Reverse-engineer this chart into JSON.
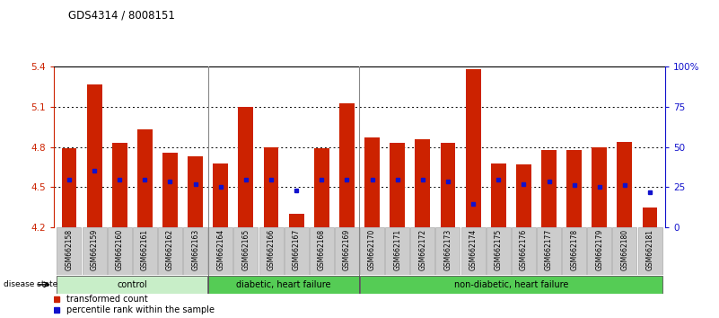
{
  "title": "GDS4314 / 8008151",
  "samples": [
    "GSM662158",
    "GSM662159",
    "GSM662160",
    "GSM662161",
    "GSM662162",
    "GSM662163",
    "GSM662164",
    "GSM662165",
    "GSM662166",
    "GSM662167",
    "GSM662168",
    "GSM662169",
    "GSM662170",
    "GSM662171",
    "GSM662172",
    "GSM662173",
    "GSM662174",
    "GSM662175",
    "GSM662176",
    "GSM662177",
    "GSM662178",
    "GSM662179",
    "GSM662180",
    "GSM662181"
  ],
  "bar_values": [
    4.79,
    5.27,
    4.83,
    4.93,
    4.76,
    4.73,
    4.68,
    5.1,
    4.8,
    4.3,
    4.79,
    5.13,
    4.87,
    4.83,
    4.86,
    4.83,
    5.38,
    4.68,
    4.67,
    4.78,
    4.78,
    4.8,
    4.84,
    4.35
  ],
  "percentile_values": [
    4.555,
    4.625,
    4.555,
    4.555,
    4.545,
    4.52,
    4.5,
    4.555,
    4.555,
    4.475,
    4.555,
    4.555,
    4.555,
    4.555,
    4.555,
    4.545,
    4.375,
    4.555,
    4.525,
    4.545,
    4.515,
    4.5,
    4.515,
    4.465
  ],
  "ymin": 4.2,
  "ymax": 5.4,
  "yticks": [
    4.2,
    4.5,
    4.8,
    5.1,
    5.4
  ],
  "ytick_labels": [
    "4.2",
    "4.5",
    "4.8",
    "5.1",
    "5.4"
  ],
  "grid_lines": [
    4.5,
    4.8,
    5.1
  ],
  "right_yticks": [
    0,
    25,
    50,
    75,
    100
  ],
  "right_ytick_labels": [
    "0",
    "25",
    "50",
    "75",
    "100%"
  ],
  "bar_color": "#cc2200",
  "marker_color": "#1111cc",
  "group_ranges": [
    [
      0,
      5,
      "control",
      "#c8eec8"
    ],
    [
      6,
      11,
      "diabetic, heart failure",
      "#55cc55"
    ],
    [
      12,
      23,
      "non-diabetic, heart failure",
      "#55cc55"
    ]
  ],
  "disease_state_label": "disease state",
  "left_axis_color": "#cc2200",
  "right_axis_color": "#1111cc",
  "separator_color": "#888888",
  "tick_bg_color": "#cccccc",
  "tick_edge_color": "#aaaaaa"
}
